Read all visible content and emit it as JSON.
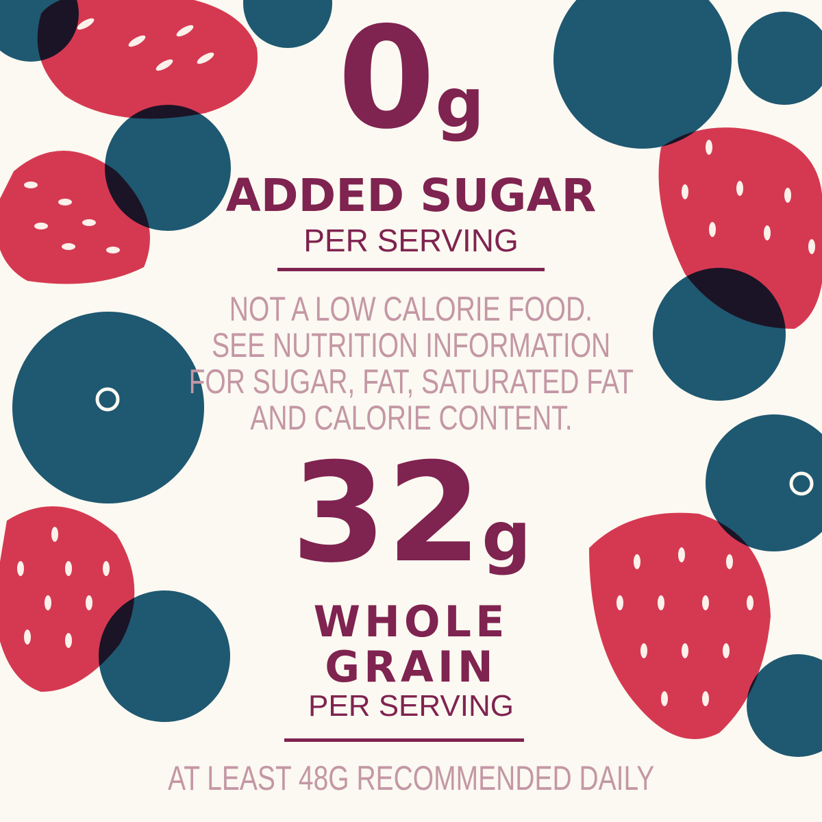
{
  "colors": {
    "background": "#fbf9f1",
    "primary_text": "#7f2350",
    "secondary_text": "#c497a5",
    "blueberry": "#1f5a78",
    "strawberry": "#d93a55"
  },
  "sugar": {
    "value": "0",
    "unit": "g",
    "label": "ADDED SUGAR",
    "sublabel": "PER SERVING"
  },
  "disclaimer": {
    "lines": [
      "NOT A LOW CALORIE FOOD.",
      "SEE NUTRITION INFORMATION",
      "FOR SUGAR, FAT, SATURATED FAT",
      "AND CALORIE CONTENT."
    ]
  },
  "grain": {
    "value": "32",
    "unit": "g",
    "label_line1": "WHOLE",
    "label_line2": "GRAIN",
    "sublabel": "PER SERVING"
  },
  "footer": {
    "text": "AT LEAST 48G RECOMMENDED DAILY"
  }
}
